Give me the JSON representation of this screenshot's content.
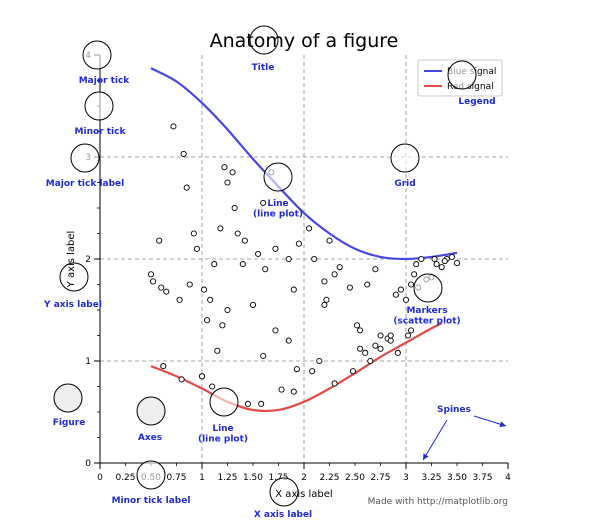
{
  "chart_data": {
    "type": "line",
    "title": "Anatomy of a figure",
    "xlabel": "X axis label",
    "ylabel": "Y axis label",
    "xlim": [
      0,
      4
    ],
    "ylim": [
      0,
      4
    ],
    "x_major_ticks": [
      "0",
      "1",
      "2",
      "3",
      "4"
    ],
    "x_minor_ticks": [
      "0.25",
      "0.50",
      "0.75",
      "1.25",
      "1.50",
      "1.75",
      "2.25",
      "2.50",
      "2.75",
      "3.25",
      "3.50",
      "3.75"
    ],
    "y_major_ticks": [
      "0",
      "1",
      "2",
      "3",
      "4"
    ],
    "grid": true,
    "legend_placement": "top-right",
    "series": [
      {
        "name": "Blue signal",
        "type": "line",
        "color": "#4646e6",
        "x": [
          0.5,
          0.75,
          1.0,
          1.25,
          1.5,
          1.75,
          2.0,
          2.25,
          2.5,
          2.75,
          3.0,
          3.25,
          3.5
        ],
        "y": [
          3.87,
          3.74,
          3.53,
          3.27,
          2.98,
          2.71,
          2.45,
          2.25,
          2.1,
          2.02,
          2.0,
          2.02,
          2.06
        ]
      },
      {
        "name": "Red signal",
        "type": "line",
        "color": "#e24a46",
        "x": [
          0.5,
          0.75,
          1.0,
          1.25,
          1.5,
          1.75,
          2.0,
          2.25,
          2.5,
          2.75,
          3.0,
          3.25,
          3.35
        ],
        "y": [
          0.95,
          0.85,
          0.73,
          0.6,
          0.52,
          0.52,
          0.6,
          0.73,
          0.88,
          1.04,
          1.18,
          1.32,
          1.37
        ]
      },
      {
        "name": "",
        "type": "scatter",
        "x": [
          0.72,
          0.82,
          0.58,
          0.85,
          0.92,
          0.6,
          0.5,
          0.52,
          0.65,
          0.78,
          0.88,
          0.95,
          1.02,
          1.08,
          1.18,
          1.12,
          1.22,
          1.25,
          1.3,
          1.35,
          1.42,
          1.4,
          1.32,
          1.5,
          1.62,
          1.55,
          1.72,
          1.6,
          1.68,
          1.85,
          1.95,
          2.05,
          1.9,
          2.1,
          2.2,
          2.25,
          1.0,
          1.05,
          1.15,
          1.2,
          1.25,
          2.2,
          2.22,
          2.3,
          2.35,
          2.45,
          2.52,
          2.55,
          2.62,
          2.7,
          2.75,
          2.82,
          2.9,
          2.95,
          3.0,
          3.02,
          3.05,
          3.08,
          3.12,
          3.2,
          3.25,
          3.3,
          3.35,
          3.4,
          3.45,
          3.5,
          0.62,
          0.8,
          1.0,
          1.1,
          1.45,
          1.58,
          1.78,
          1.9,
          2.08,
          2.15,
          2.3,
          2.48,
          2.55,
          2.65,
          2.75,
          2.85,
          2.92,
          3.1,
          3.15,
          1.6,
          1.72,
          1.85,
          1.93,
          2.6,
          2.7,
          2.85,
          3.05,
          3.28,
          3.38
        ],
        "y": [
          3.3,
          3.03,
          2.18,
          2.7,
          2.25,
          1.72,
          1.85,
          1.78,
          1.68,
          1.6,
          1.75,
          2.1,
          1.7,
          1.6,
          2.3,
          1.95,
          2.9,
          2.75,
          2.85,
          2.25,
          2.18,
          1.95,
          2.5,
          1.55,
          1.9,
          2.05,
          2.1,
          2.55,
          2.85,
          2.0,
          2.15,
          2.3,
          1.7,
          2.0,
          1.78,
          2.18,
          0.85,
          1.4,
          1.1,
          1.35,
          1.5,
          1.55,
          1.6,
          1.85,
          1.92,
          1.72,
          1.35,
          1.3,
          1.75,
          1.9,
          1.25,
          1.22,
          1.65,
          1.7,
          1.6,
          1.25,
          1.3,
          1.85,
          1.72,
          1.8,
          1.82,
          1.95,
          1.92,
          2.0,
          2.02,
          1.96,
          0.95,
          0.82,
          0.85,
          0.75,
          0.58,
          0.58,
          0.72,
          0.7,
          0.9,
          1.0,
          0.78,
          0.9,
          1.12,
          1.0,
          1.12,
          1.2,
          1.08,
          1.95,
          2.0,
          1.05,
          1.3,
          1.2,
          0.92,
          1.08,
          1.15,
          1.25,
          1.75,
          2.0,
          1.98
        ]
      }
    ],
    "annotations": [
      "Major tick",
      "Minor tick",
      "Major tick label",
      "Title",
      "Legend",
      "Grid",
      "Line\n(line plot)",
      "Y axis label",
      "Markers\n(scatter plot)",
      "Figure",
      "Axes",
      "Line\n(line plot)",
      "Spines",
      "Minor tick label",
      "X axis label"
    ]
  },
  "credit": "Made with http://matplotlib.org"
}
